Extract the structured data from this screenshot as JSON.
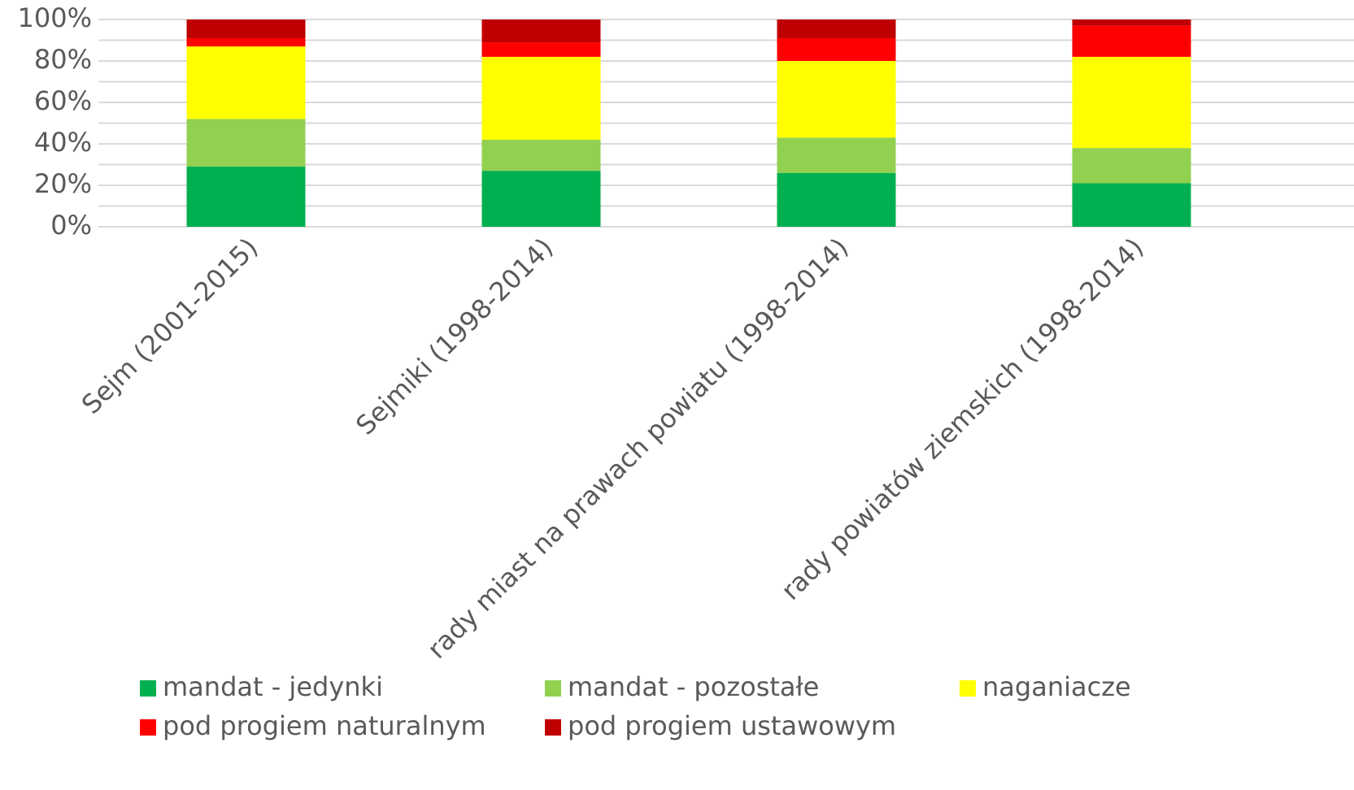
{
  "chart_data": {
    "type": "stacked_bar",
    "categories": [
      "Sejm (2001-2015)",
      "Sejmiki (1998-2014)",
      "rady miast na prawach powiatu (1998-2014)",
      "rady powiatów ziemskich (1998-2014)"
    ],
    "series": [
      {
        "name": "mandat - jedynki",
        "color": "#00b050",
        "values": [
          29,
          27,
          26,
          21
        ]
      },
      {
        "name": "mandat - pozostałe",
        "color": "#92d050",
        "values": [
          23,
          15,
          17,
          17
        ]
      },
      {
        "name": "naganiacze",
        "color": "#ffff00",
        "values": [
          35,
          40,
          37,
          44
        ]
      },
      {
        "name": "pod progiem naturalnym",
        "color": "#ff0000",
        "values": [
          4,
          7,
          11,
          15
        ]
      },
      {
        "name": "pod progiem ustawowym",
        "color": "#c00000",
        "values": [
          9,
          11,
          9,
          3
        ]
      }
    ],
    "ylim": [
      0,
      100
    ],
    "yticks": [
      {
        "value": 0,
        "label": "0%"
      },
      {
        "value": 20,
        "label": "20%"
      },
      {
        "value": 40,
        "label": "40%"
      },
      {
        "value": 60,
        "label": "60%"
      },
      {
        "value": 80,
        "label": "80%"
      },
      {
        "value": 100,
        "label": "100%"
      }
    ],
    "minor_yticks": [
      10,
      30,
      50,
      70,
      90
    ],
    "grid": true,
    "legend": "bottom"
  }
}
